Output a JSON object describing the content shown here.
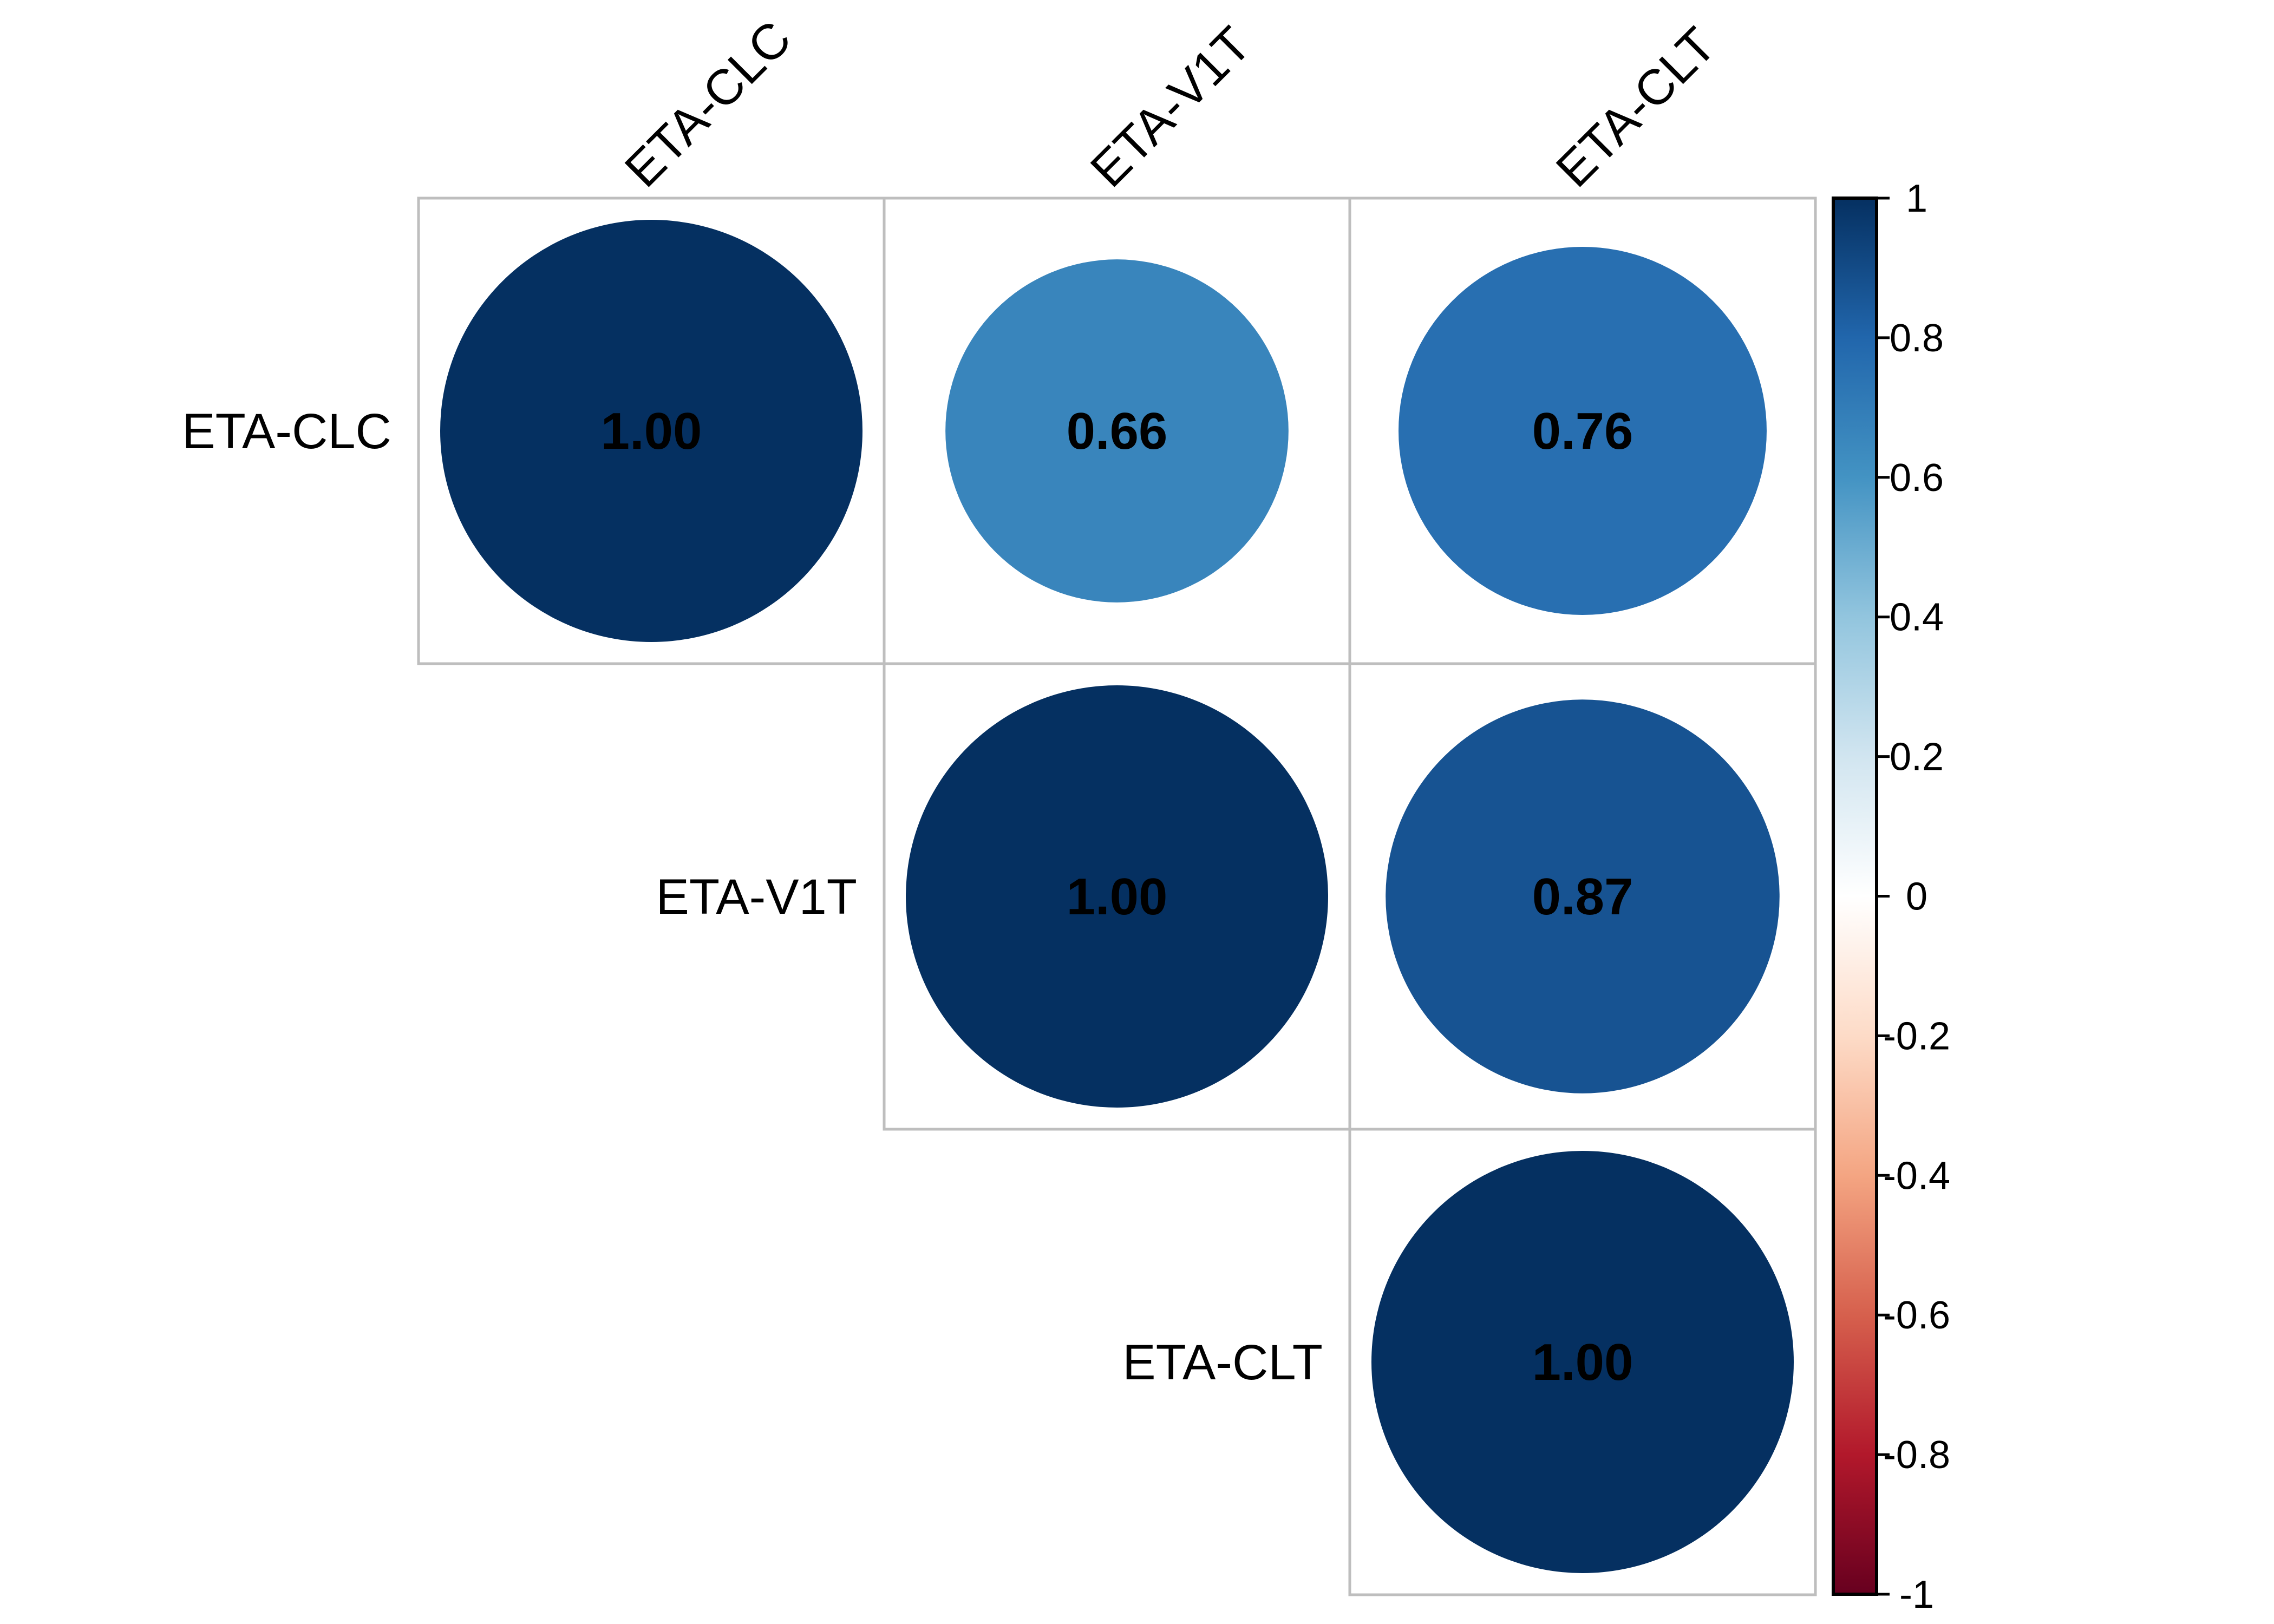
{
  "chart_data": {
    "type": "heatmap",
    "style": "corrplot-circle-upper",
    "variables": [
      "ETA-CLC",
      "ETA-V1T",
      "ETA-CLT"
    ],
    "matrix": [
      [
        1.0,
        0.66,
        0.76
      ],
      [
        0.66,
        1.0,
        0.87
      ],
      [
        0.76,
        0.87,
        1.0
      ]
    ],
    "value_labels": [
      [
        "1.00",
        "0.66",
        "0.76"
      ],
      [
        null,
        "1.00",
        "0.87"
      ],
      [
        null,
        null,
        "1.00"
      ]
    ],
    "colorbar": {
      "range": [
        -1,
        1
      ],
      "ticks": [
        "1",
        "0.8",
        "0.6",
        "0.4",
        "0.2",
        "0",
        "-0.2",
        "-0.4",
        "-0.6",
        "-0.8",
        "-1"
      ],
      "tick_values": [
        1,
        0.8,
        0.6,
        0.4,
        0.2,
        0,
        -0.2,
        -0.4,
        -0.6,
        -0.8,
        -1
      ],
      "palette": [
        "#67001F",
        "#B2182B",
        "#D6604D",
        "#F4A582",
        "#FDDBC7",
        "#FFFFFF",
        "#D1E5F0",
        "#92C5DE",
        "#4393C3",
        "#2166AC",
        "#053061"
      ],
      "placement": "right"
    },
    "grid_color": "#BEBEBE"
  }
}
